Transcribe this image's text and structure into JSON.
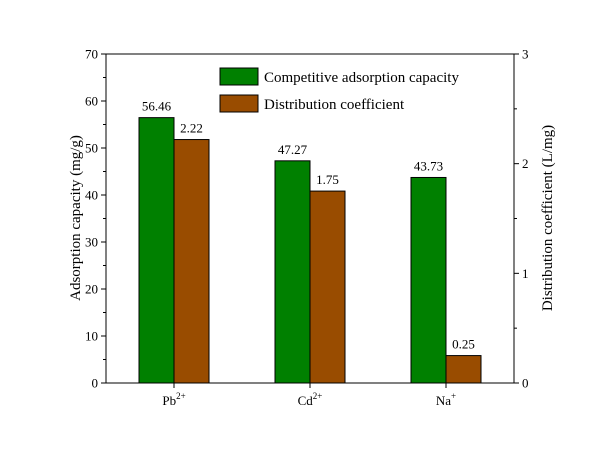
{
  "chart_data": {
    "type": "bar",
    "categories": [
      "Pb",
      "Cd",
      "Na"
    ],
    "category_superscripts": [
      "2+",
      "2+",
      "+"
    ],
    "series": [
      {
        "name": "Competitive adsorption capacity",
        "axis": "left",
        "values": [
          56.46,
          47.27,
          43.73
        ],
        "labels": [
          "56.46",
          "47.27",
          "43.73"
        ],
        "color": "#008000"
      },
      {
        "name": "Distribution coefficient",
        "axis": "right",
        "values": [
          2.22,
          1.75,
          0.25
        ],
        "labels": [
          "2.22",
          "1.75",
          "0.25"
        ],
        "color": "#994C00"
      }
    ],
    "ylabel": "Adsorption capacity (mg/g)",
    "y2label": "Distribution coefficient (L/mg)",
    "ylim": [
      0,
      70
    ],
    "yticks": [
      "0",
      "10",
      "20",
      "30",
      "40",
      "50",
      "60",
      "70"
    ],
    "y2lim": [
      0,
      3
    ],
    "y2ticks": [
      "0",
      "1",
      "2",
      "3"
    ],
    "grid": false,
    "legend_position": "top-right"
  }
}
